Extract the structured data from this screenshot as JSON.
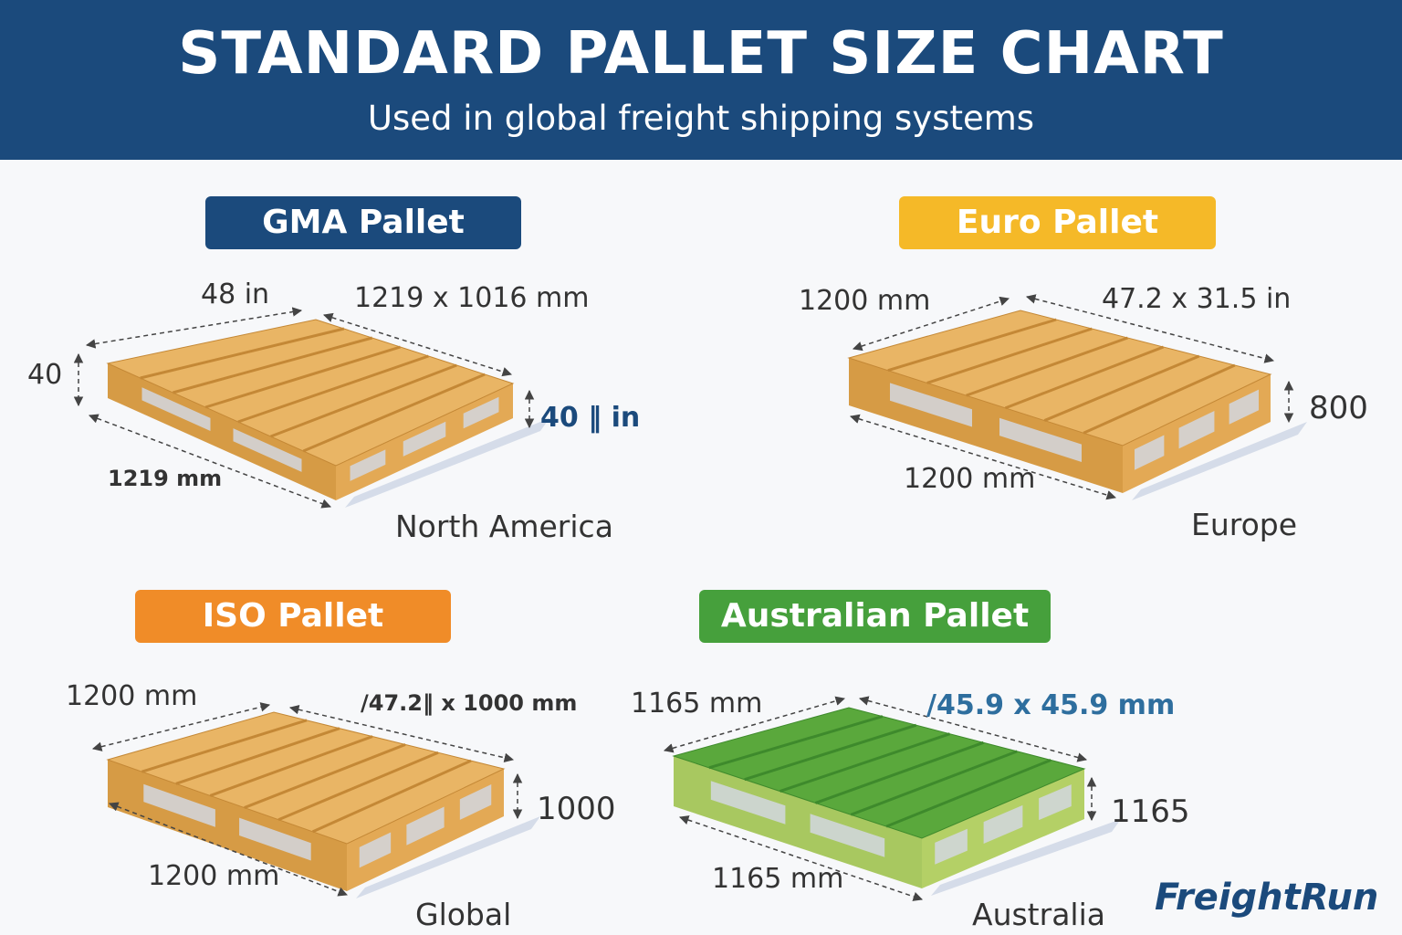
{
  "header": {
    "title": "STANDARD PALLET SIZE CHART",
    "subtitle": "Used in global freight shipping systems"
  },
  "colors": {
    "header": "#1b4a7c",
    "gma": "#1b4a7c",
    "euro": "#f5b928",
    "iso": "#f08c28",
    "australian": "#46a03c",
    "wood": "#e9b565",
    "green_wood": "#5aa83c"
  },
  "pallets": [
    {
      "name": "GMA Pallet",
      "region": "North America",
      "labels": [
        "48 in",
        "1219 x 1016 mm",
        "40",
        "40 ‖ in",
        "1219 mm"
      ]
    },
    {
      "name": "Euro Pallet",
      "region": "Europe",
      "labels": [
        "1200 mm",
        "47.2 x 31.5 in",
        "800",
        "1200 mm"
      ]
    },
    {
      "name": "ISO Pallet",
      "region": "Global",
      "labels": [
        "1200 mm",
        "/47.2‖ x 1000 mm",
        "1000",
        "1200 mm"
      ]
    },
    {
      "name": "Australian Pallet",
      "region": "Australia",
      "labels": [
        "1165 mm",
        "/45.9 x 45.9 mm",
        "1165",
        "1165 mm"
      ]
    }
  ],
  "brand": {
    "logo": "FreightRun"
  }
}
